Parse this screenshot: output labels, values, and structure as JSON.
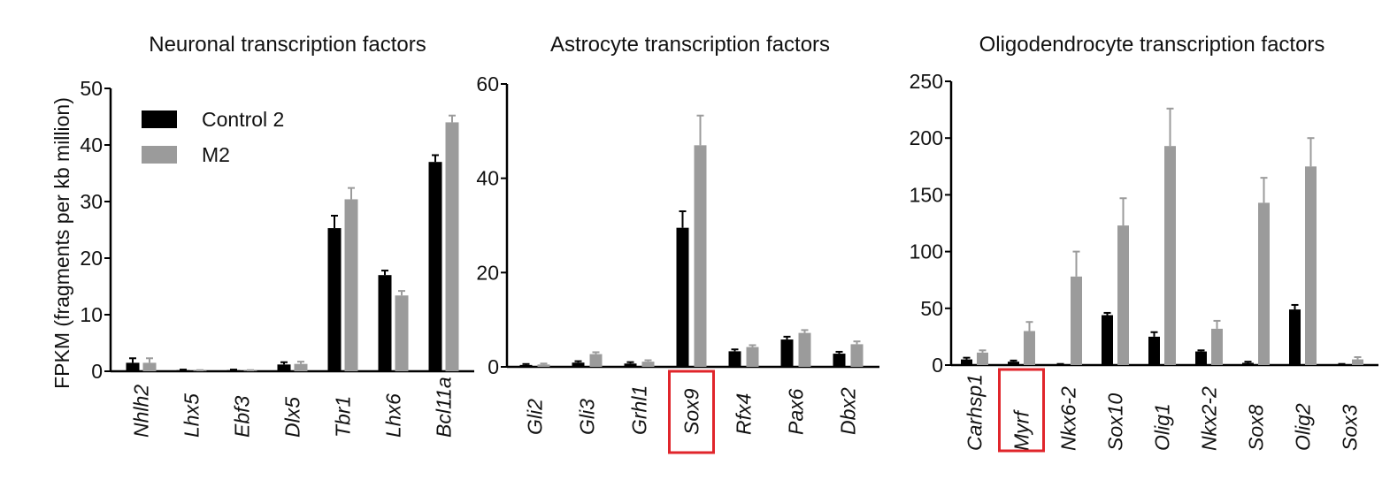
{
  "colors": {
    "control": "#000000",
    "m2": "#9b9b9b",
    "highlight": "#e0252b"
  },
  "legend": {
    "items": [
      "Control 2",
      "M2"
    ],
    "position": "top-left"
  },
  "ylabel": "FPKM (fragments per kb million)",
  "chart_data": [
    {
      "type": "bar",
      "title": "Neuronal transcription factors",
      "ylim": [
        0,
        50
      ],
      "yticks": [
        0,
        10,
        20,
        30,
        40,
        50
      ],
      "categories": [
        "Nhlh2",
        "Lhx5",
        "Ebf3",
        "Dlx5",
        "Tbr1",
        "Lhx6",
        "Bcl11a"
      ],
      "series": [
        {
          "name": "Control 2",
          "values": [
            1.5,
            0.2,
            0.2,
            1.2,
            25.3,
            17.0,
            37.0
          ],
          "errors": [
            0.8,
            0.1,
            0.1,
            0.4,
            2.2,
            0.8,
            1.2
          ]
        },
        {
          "name": "M2",
          "values": [
            1.5,
            0.1,
            0.1,
            1.3,
            30.4,
            13.4,
            44.0
          ],
          "errors": [
            0.8,
            0.1,
            0.1,
            0.4,
            2.0,
            0.8,
            1.2
          ]
        }
      ],
      "highlight": []
    },
    {
      "type": "bar",
      "title": "Astrocyte transcription factors",
      "ylim": [
        0,
        60
      ],
      "yticks": [
        0,
        20,
        40,
        60
      ],
      "categories": [
        "Gli2",
        "Gli3",
        "Grhl1",
        "Sox9",
        "Rfx4",
        "Pax6",
        "Dbx2"
      ],
      "series": [
        {
          "name": "Control 2",
          "values": [
            0.4,
            0.9,
            0.7,
            29.5,
            3.3,
            5.8,
            2.8
          ],
          "errors": [
            0.2,
            0.3,
            0.3,
            3.5,
            0.4,
            0.6,
            0.4
          ]
        },
        {
          "name": "M2",
          "values": [
            0.5,
            2.7,
            1.1,
            47.0,
            4.2,
            7.2,
            4.8
          ],
          "errors": [
            0.2,
            0.4,
            0.3,
            6.3,
            0.4,
            0.6,
            0.6
          ]
        }
      ],
      "highlight": [
        "Sox9"
      ]
    },
    {
      "type": "bar",
      "title": "Oligodendrocyte transcription factors",
      "ylim": [
        0,
        250
      ],
      "yticks": [
        0,
        50,
        100,
        150,
        200,
        250
      ],
      "categories": [
        "Carhsp1",
        "Myrf",
        "Nkx6-2",
        "Sox10",
        "Olig1",
        "Nkx2-2",
        "Sox8",
        "Olig2",
        "Sox3"
      ],
      "series": [
        {
          "name": "Control 2",
          "values": [
            5,
            3,
            0.5,
            44,
            25,
            12,
            2,
            49,
            0.5
          ],
          "errors": [
            1.5,
            1,
            0.5,
            2,
            4,
            1,
            1,
            4,
            0.5
          ]
        },
        {
          "name": "M2",
          "values": [
            11,
            30,
            78,
            123,
            193,
            32,
            143,
            175,
            5
          ],
          "errors": [
            2,
            8,
            22,
            24,
            33,
            7,
            22,
            25,
            2
          ]
        }
      ],
      "highlight": [
        "Myrf"
      ]
    }
  ]
}
